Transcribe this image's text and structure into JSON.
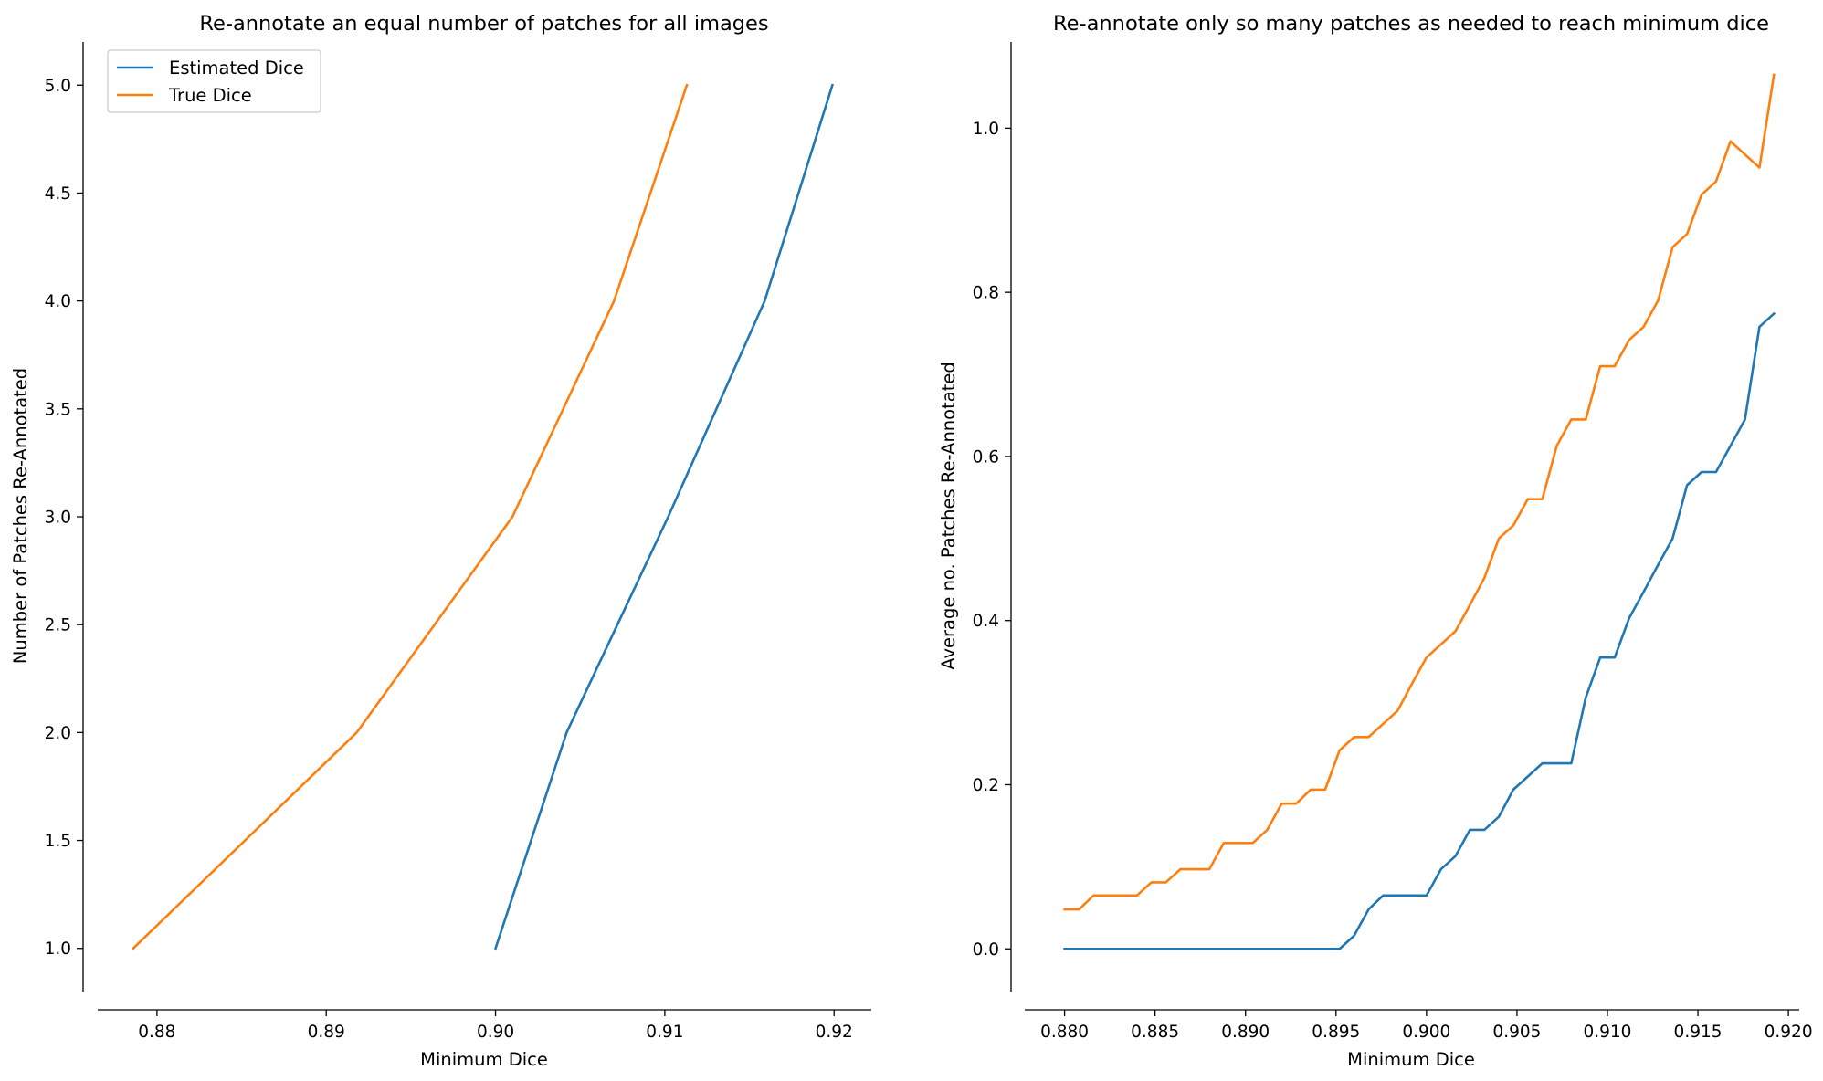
{
  "chart_data": [
    {
      "type": "line",
      "title": "Re-annotate an equal number of patches for all images",
      "xlabel": "Minimum Dice",
      "ylabel": "Number of Patches Re-Annotated",
      "xlim": [
        0.8765,
        0.9222
      ],
      "ylim": [
        0.8,
        5.2
      ],
      "xticks": [
        "0.88",
        "0.89",
        "0.90",
        "0.91",
        "0.92"
      ],
      "yticks": [
        "1.0",
        "1.5",
        "2.0",
        "2.5",
        "3.0",
        "3.5",
        "4.0",
        "4.5",
        "5.0"
      ],
      "grid": false,
      "legend": "upper left",
      "series": [
        {
          "name": "Estimated Dice",
          "color": "#1f77b4",
          "x": [
            0.9,
            0.9042,
            0.9102,
            0.9159,
            0.9199
          ],
          "y": [
            1,
            2,
            3,
            4,
            5
          ]
        },
        {
          "name": "True Dice",
          "color": "#ff7f0e",
          "x": [
            0.8786,
            0.8918,
            0.901,
            0.907,
            0.9113
          ],
          "y": [
            1,
            2,
            3,
            4,
            5
          ]
        }
      ]
    },
    {
      "type": "line",
      "title": "Re-annotate only so many patches as needed to reach minimum dice",
      "xlabel": "Minimum Dice",
      "ylabel": "Average no. Patches Re-Annotated",
      "xlim": [
        0.8778,
        0.9206
      ],
      "ylim": [
        -0.052,
        1.105
      ],
      "xticks": [
        "0.880",
        "0.885",
        "0.890",
        "0.895",
        "0.900",
        "0.905",
        "0.910",
        "0.915",
        "0.920"
      ],
      "yticks": [
        "0.0",
        "0.2",
        "0.4",
        "0.6",
        "0.8",
        "1.0"
      ],
      "grid": false,
      "series": [
        {
          "name": "Estimated Dice",
          "color": "#1f77b4",
          "x": [
            0.88,
            0.8952,
            0.896,
            0.8968,
            0.8976,
            0.8984,
            0.8992,
            0.9,
            0.9008,
            0.9016,
            0.9024,
            0.9032,
            0.904,
            0.9048,
            0.9056,
            0.9064,
            0.9072,
            0.908,
            0.9088,
            0.9096,
            0.9104,
            0.9112,
            0.912,
            0.9128,
            0.9136,
            0.9144,
            0.9152,
            0.916,
            0.9168,
            0.9176,
            0.9184,
            0.9192
          ],
          "y": [
            0.0,
            0.0,
            0.016,
            0.048,
            0.065,
            0.065,
            0.065,
            0.065,
            0.097,
            0.113,
            0.145,
            0.145,
            0.161,
            0.194,
            0.21,
            0.226,
            0.226,
            0.226,
            0.306,
            0.355,
            0.355,
            0.403,
            0.435,
            0.468,
            0.5,
            0.565,
            0.581,
            0.581,
            0.613,
            0.645,
            0.758,
            0.774
          ]
        },
        {
          "name": "True Dice",
          "color": "#ff7f0e",
          "x": [
            0.88,
            0.8808,
            0.8816,
            0.8824,
            0.8832,
            0.884,
            0.8848,
            0.8856,
            0.8864,
            0.8872,
            0.888,
            0.8888,
            0.8896,
            0.8904,
            0.8912,
            0.892,
            0.8928,
            0.8936,
            0.8944,
            0.8952,
            0.896,
            0.8968,
            0.8976,
            0.8984,
            0.8992,
            0.9,
            0.9008,
            0.9016,
            0.9024,
            0.9032,
            0.904,
            0.9048,
            0.9056,
            0.9064,
            0.9072,
            0.908,
            0.9088,
            0.9096,
            0.9104,
            0.9112,
            0.912,
            0.9128,
            0.9136,
            0.9144,
            0.9152,
            0.916,
            0.9168,
            0.9176,
            0.9184,
            0.9192
          ],
          "y": [
            0.048,
            0.048,
            0.065,
            0.065,
            0.065,
            0.065,
            0.081,
            0.081,
            0.097,
            0.097,
            0.097,
            0.129,
            0.129,
            0.129,
            0.145,
            0.177,
            0.177,
            0.194,
            0.194,
            0.242,
            0.258,
            0.258,
            0.274,
            0.29,
            0.323,
            0.355,
            0.371,
            0.387,
            0.419,
            0.452,
            0.5,
            0.516,
            0.548,
            0.548,
            0.613,
            0.645,
            0.645,
            0.71,
            0.71,
            0.742,
            0.758,
            0.79,
            0.855,
            0.871,
            0.919,
            0.935,
            0.984,
            0.968,
            0.952,
            1.065
          ]
        }
      ]
    }
  ]
}
